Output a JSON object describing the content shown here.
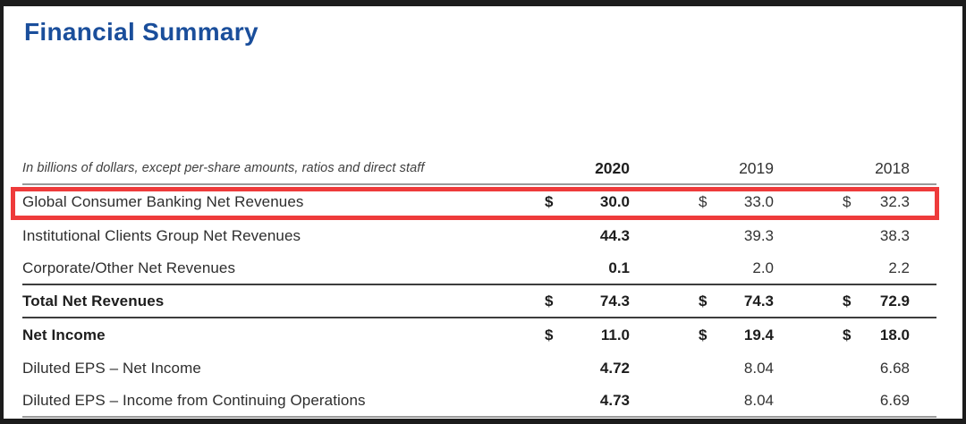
{
  "title": "Financial Summary",
  "table": {
    "note": "In billions of dollars, except per-share amounts, ratios and direct staff",
    "years": [
      "2020",
      "2019",
      "2018"
    ],
    "currency_symbol": "$",
    "rows": [
      {
        "label": "Global Consumer Banking Net Revenues",
        "dollar": true,
        "bold": false,
        "highlighted": true,
        "values": [
          "30.0",
          "33.0",
          "32.3"
        ]
      },
      {
        "label": "Institutional Clients Group Net Revenues",
        "dollar": false,
        "bold": false,
        "highlighted": false,
        "values": [
          "44.3",
          "39.3",
          "38.3"
        ]
      },
      {
        "label": "Corporate/Other Net Revenues",
        "dollar": false,
        "bold": false,
        "highlighted": false,
        "values": [
          "0.1",
          "2.0",
          "2.2"
        ]
      },
      {
        "label": "Total Net Revenues",
        "dollar": true,
        "bold": true,
        "highlighted": false,
        "values": [
          "74.3",
          "74.3",
          "72.9"
        ]
      },
      {
        "label": "Net Income",
        "dollar": true,
        "bold": true,
        "highlighted": false,
        "values": [
          "11.0",
          "19.4",
          "18.0"
        ]
      },
      {
        "label": "Diluted EPS – Net Income",
        "dollar": false,
        "bold": false,
        "highlighted": false,
        "values": [
          "4.72",
          "8.04",
          "6.68"
        ]
      },
      {
        "label": "Diluted EPS – Income from Continuing Operations",
        "dollar": false,
        "bold": false,
        "highlighted": false,
        "values": [
          "4.73",
          "8.04",
          "6.69"
        ]
      }
    ]
  },
  "colors": {
    "title_blue": "#1A4E9B",
    "highlight_red": "#EE3B3B",
    "rule_dark": "#3D3D3D",
    "rule_gray": "#999999",
    "text": "#2B2B2B"
  }
}
